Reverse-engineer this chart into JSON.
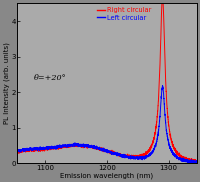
{
  "title": "",
  "xlabel": "Emission wavelength (nm)",
  "ylabel": "PL Intensity (arb. units)",
  "xlim": [
    1055,
    1345
  ],
  "ylim": [
    0,
    4.5
  ],
  "xticks": [
    1100,
    1200,
    1300
  ],
  "yticks": [
    0,
    1,
    2,
    3,
    4
  ],
  "legend_labels": [
    "Right circular",
    "Left circular"
  ],
  "legend_colors": [
    "#ff0000",
    "#0000ff"
  ],
  "annotation": "θ=+20°",
  "outer_bg_color": "#888888",
  "plot_bg_color": "#aaaaaa",
  "fig_size": [
    2.0,
    1.82
  ],
  "dpi": 100
}
